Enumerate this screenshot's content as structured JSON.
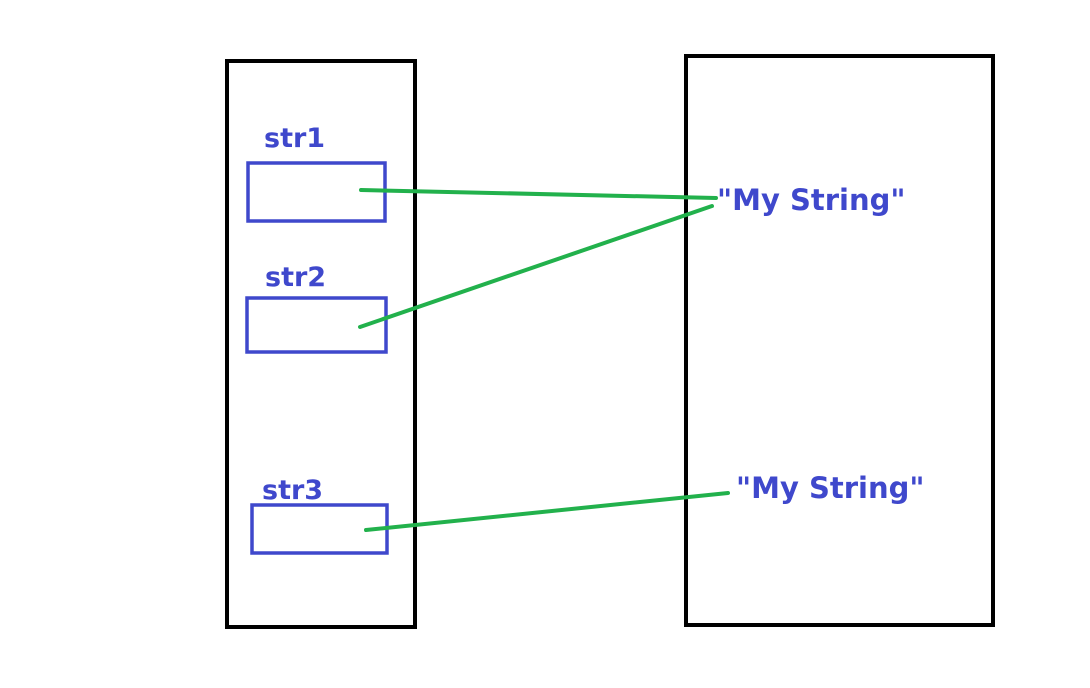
{
  "colors": {
    "background": "#ffffff",
    "container_border": "#000000",
    "variable": "#3f48cc",
    "reference_line": "#22b14c"
  },
  "stack": {
    "variables": [
      {
        "label": "str1"
      },
      {
        "label": "str2"
      },
      {
        "label": "str3"
      }
    ]
  },
  "heap": {
    "strings": [
      {
        "text": "\"My String\""
      },
      {
        "text": "\"My String\""
      }
    ]
  },
  "references": [
    {
      "from": "str1",
      "to": 0
    },
    {
      "from": "str2",
      "to": 0
    },
    {
      "from": "str3",
      "to": 1
    }
  ]
}
